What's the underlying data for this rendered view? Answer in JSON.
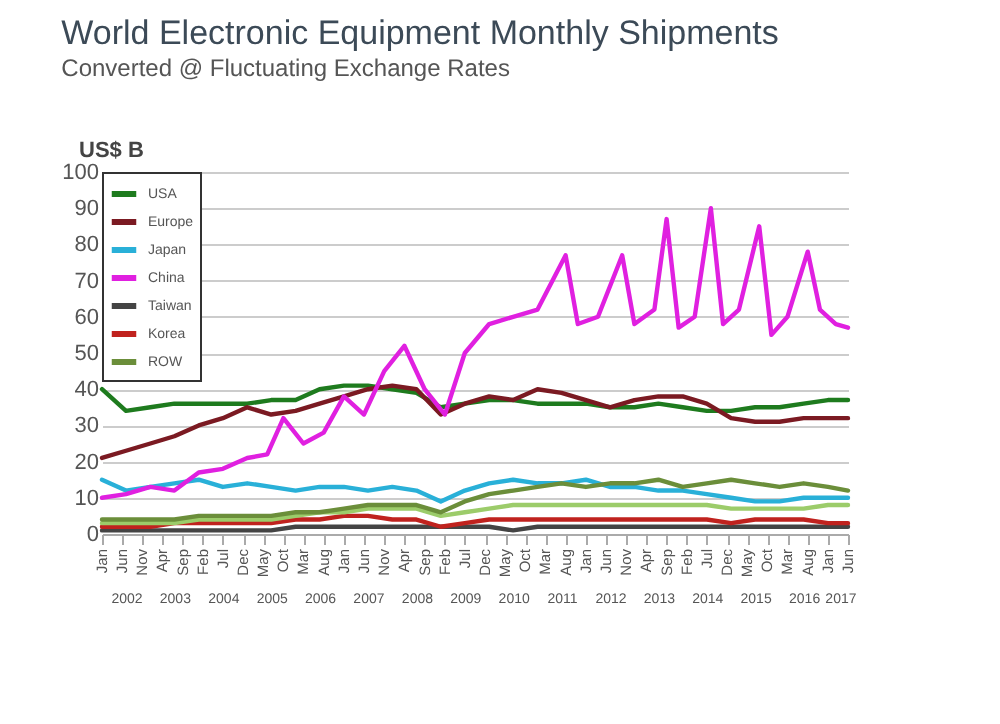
{
  "chart_data": {
    "type": "line",
    "title": "World Electronic Equipment  Monthly Shipments",
    "subtitle": "Converted @ Fluctuating Exchange Rates",
    "ylabel": "US$ B",
    "x": [
      "2002-01",
      "2002-07",
      "2003-01",
      "2003-07",
      "2004-01",
      "2004-07",
      "2005-01",
      "2005-07",
      "2006-01",
      "2006-07",
      "2007-01",
      "2007-07",
      "2008-01",
      "2008-07",
      "2009-01",
      "2009-07",
      "2010-01",
      "2010-07",
      "2011-01",
      "2011-07",
      "2012-01",
      "2012-07",
      "2013-01",
      "2013-07",
      "2014-01",
      "2014-07",
      "2015-01",
      "2015-07",
      "2016-01",
      "2016-07",
      "2017-01",
      "2017-06"
    ],
    "series": [
      {
        "name": "USA",
        "color": "#1e7b1e",
        "values": [
          40,
          34,
          35,
          36,
          36,
          36,
          36,
          37,
          37,
          40,
          41,
          41,
          40,
          39,
          35,
          36,
          37,
          37,
          36,
          36,
          36,
          35,
          35,
          36,
          35,
          34,
          34,
          35,
          35,
          36,
          37,
          37
        ]
      },
      {
        "name": "Europe",
        "color": "#7b1a22",
        "values": [
          21,
          23,
          25,
          27,
          30,
          32,
          35,
          33,
          34,
          36,
          38,
          40,
          41,
          40,
          33,
          36,
          38,
          37,
          40,
          39,
          37,
          35,
          37,
          38,
          38,
          36,
          32,
          31,
          31,
          32,
          32,
          32
        ]
      },
      {
        "name": "Japan",
        "color": "#29b0d8",
        "values": [
          15,
          12,
          13,
          14,
          15,
          13,
          14,
          13,
          12,
          13,
          13,
          12,
          13,
          12,
          9,
          12,
          14,
          15,
          14,
          14,
          15,
          13,
          13,
          12,
          12,
          11,
          10,
          9,
          9,
          10,
          10,
          10
        ]
      },
      {
        "name": "China",
        "color": "#e020e0",
        "x": [
          "2002-01",
          "2002-07",
          "2003-01",
          "2003-07",
          "2004-01",
          "2004-07",
          "2005-01",
          "2005-06",
          "2005-10",
          "2006-03",
          "2006-08",
          "2007-01",
          "2007-06",
          "2007-11",
          "2008-04",
          "2008-09",
          "2009-02",
          "2009-07",
          "2010-01",
          "2010-07",
          "2011-01",
          "2011-08",
          "2011-11",
          "2012-04",
          "2012-10",
          "2013-01",
          "2013-06",
          "2013-09",
          "2013-12",
          "2014-04",
          "2014-08",
          "2014-11",
          "2015-03",
          "2015-08",
          "2015-11",
          "2016-03",
          "2016-08",
          "2016-11",
          "2017-03",
          "2017-06"
        ],
        "values": [
          10,
          11,
          13,
          12,
          17,
          18,
          21,
          22,
          32,
          25,
          28,
          38,
          33,
          45,
          52,
          40,
          33,
          50,
          58,
          60,
          62,
          77,
          58,
          60,
          77,
          58,
          62,
          87,
          57,
          60,
          90,
          58,
          62,
          85,
          55,
          60,
          78,
          62,
          58,
          57
        ]
      },
      {
        "name": "Taiwan",
        "color": "#444444",
        "values": [
          1,
          1,
          1,
          1,
          1,
          1,
          1,
          1,
          2,
          2,
          2,
          2,
          2,
          2,
          2,
          2,
          2,
          1,
          2,
          2,
          2,
          2,
          2,
          2,
          2,
          2,
          2,
          2,
          2,
          2,
          2,
          2
        ]
      },
      {
        "name": "Korea",
        "color": "#c0221e",
        "values": [
          2,
          2,
          2,
          3,
          3,
          3,
          3,
          3,
          4,
          4,
          5,
          5,
          4,
          4,
          2,
          3,
          4,
          4,
          4,
          4,
          4,
          4,
          4,
          4,
          4,
          4,
          3,
          4,
          4,
          4,
          3,
          3
        ]
      },
      {
        "color": "#9ccc6a",
        "values": [
          3,
          3,
          3,
          3,
          4,
          4,
          4,
          4,
          5,
          6,
          6,
          7,
          7,
          7,
          5,
          6,
          7,
          8,
          8,
          8,
          8,
          8,
          8,
          8,
          8,
          8,
          7,
          7,
          7,
          7,
          8,
          8
        ]
      },
      {
        "name": "ROW",
        "color": "#6b8e3a",
        "values": [
          4,
          4,
          4,
          4,
          5,
          5,
          5,
          5,
          6,
          6,
          7,
          8,
          8,
          8,
          6,
          9,
          11,
          12,
          13,
          14,
          13,
          14,
          14,
          15,
          13,
          14,
          15,
          14,
          13,
          14,
          13,
          12
        ]
      }
    ],
    "xlim": [
      "2002-01",
      "2017-06"
    ],
    "xticks": [
      {
        "value": "2002-01",
        "label": "Jan"
      },
      {
        "value": "2002-06",
        "label": "Jun"
      },
      {
        "value": "2002-11",
        "label": "Nov"
      },
      {
        "value": "2003-04",
        "label": "Apr"
      },
      {
        "value": "2003-09",
        "label": "Sep"
      },
      {
        "value": "2004-02",
        "label": "Feb"
      },
      {
        "value": "2004-07",
        "label": "Jul"
      },
      {
        "value": "2004-12",
        "label": "Dec"
      },
      {
        "value": "2005-05",
        "label": "May"
      },
      {
        "value": "2005-10",
        "label": "Oct"
      },
      {
        "value": "2006-03",
        "label": "Mar"
      },
      {
        "value": "2006-08",
        "label": "Aug"
      },
      {
        "value": "2007-01",
        "label": "Jan"
      },
      {
        "value": "2007-06",
        "label": "Jun"
      },
      {
        "value": "2007-11",
        "label": "Nov"
      },
      {
        "value": "2008-04",
        "label": "Apr"
      },
      {
        "value": "2008-09",
        "label": "Sep"
      },
      {
        "value": "2009-02",
        "label": "Feb"
      },
      {
        "value": "2009-07",
        "label": "Jul"
      },
      {
        "value": "2009-12",
        "label": "Dec"
      },
      {
        "value": "2010-05",
        "label": "May"
      },
      {
        "value": "2010-10",
        "label": "Oct"
      },
      {
        "value": "2011-03",
        "label": "Mar"
      },
      {
        "value": "2011-08",
        "label": "Aug"
      },
      {
        "value": "2012-01",
        "label": "Jan"
      },
      {
        "value": "2012-06",
        "label": "Jun"
      },
      {
        "value": "2012-11",
        "label": "Nov"
      },
      {
        "value": "2013-04",
        "label": "Apr"
      },
      {
        "value": "2013-09",
        "label": "Sep"
      },
      {
        "value": "2014-02",
        "label": "Feb"
      },
      {
        "value": "2014-07",
        "label": "Jul"
      },
      {
        "value": "2014-12",
        "label": "Dec"
      },
      {
        "value": "2015-05",
        "label": "May"
      },
      {
        "value": "2015-10",
        "label": "Oct"
      },
      {
        "value": "2016-03",
        "label": "Mar"
      },
      {
        "value": "2016-08",
        "label": "Aug"
      },
      {
        "value": "2017-01",
        "label": "Jan"
      },
      {
        "value": "2017-06",
        "label": "Jun"
      }
    ],
    "x2ticks": [
      {
        "value": "2002-07",
        "label": "2002"
      },
      {
        "value": "2003-07",
        "label": "2003"
      },
      {
        "value": "2004-07",
        "label": "2004"
      },
      {
        "value": "2005-07",
        "label": "2005"
      },
      {
        "value": "2006-07",
        "label": "2006"
      },
      {
        "value": "2007-07",
        "label": "2007"
      },
      {
        "value": "2008-07",
        "label": "2008"
      },
      {
        "value": "2009-07",
        "label": "2009"
      },
      {
        "value": "2010-07",
        "label": "2010"
      },
      {
        "value": "2011-07",
        "label": "2011"
      },
      {
        "value": "2012-07",
        "label": "2012"
      },
      {
        "value": "2013-07",
        "label": "2013"
      },
      {
        "value": "2014-07",
        "label": "2014"
      },
      {
        "value": "2015-07",
        "label": "2015"
      },
      {
        "value": "2016-07",
        "label": "2016"
      },
      {
        "value": "2017-04",
        "label": "2017"
      }
    ],
    "x2lim": [
      "2002-01",
      "2017-06"
    ],
    "ylim": [
      0,
      100
    ],
    "yticks": [
      0,
      10,
      20,
      30,
      40,
      50,
      60,
      70,
      80,
      90,
      100
    ],
    "grid": "y",
    "legend": "top left",
    "marker": "none",
    "line_style": "solid"
  }
}
